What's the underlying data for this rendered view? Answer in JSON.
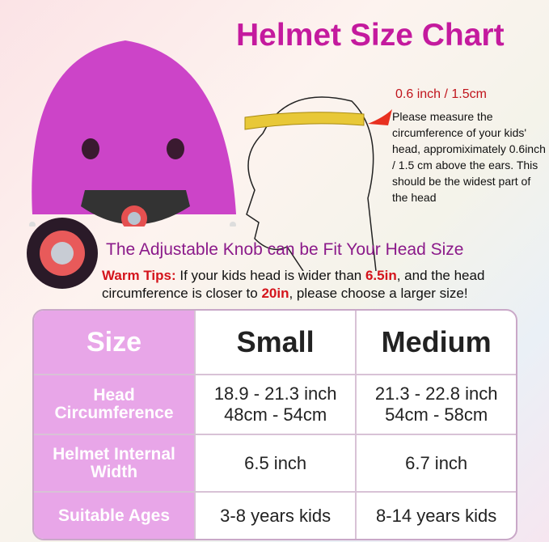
{
  "title": "Helmet Size Chart",
  "measure": {
    "label": "0.6 inch / 1.5cm",
    "text": "Please measure the circumference of your kids' head, appromiximately 0.6inch / 1.5 cm above the ears. This should be the widest part of the head"
  },
  "adjustable": "The Adjustable Knob can be Fit Your Head Size",
  "tips": {
    "label": "Warm Tips:",
    "t1": " If your kids head is wider than ",
    "v1": "6.5in",
    "t2": ", and the head circumference is closer to ",
    "v2": "20in",
    "t3": ", please choose a larger size!"
  },
  "table": {
    "headers": [
      "Size",
      "Small",
      "Medium"
    ],
    "rows": [
      {
        "label": "Head Circumference",
        "small": [
          "18.9 - 21.3 inch",
          "48cm - 54cm"
        ],
        "medium": [
          "21.3 - 22.8 inch",
          "54cm - 58cm"
        ]
      },
      {
        "label": "Helmet Internal Width",
        "small": [
          "6.5 inch"
        ],
        "medium": [
          "6.7 inch"
        ]
      },
      {
        "label": "Suitable Ages",
        "small": [
          "3-8 years kids"
        ],
        "medium": [
          "8-14 years kids"
        ]
      }
    ]
  },
  "colors": {
    "title": "#c41a9e",
    "helmet": "#cc44c8",
    "accent": "#d4141c",
    "header_cell": "#e8a6e8"
  }
}
